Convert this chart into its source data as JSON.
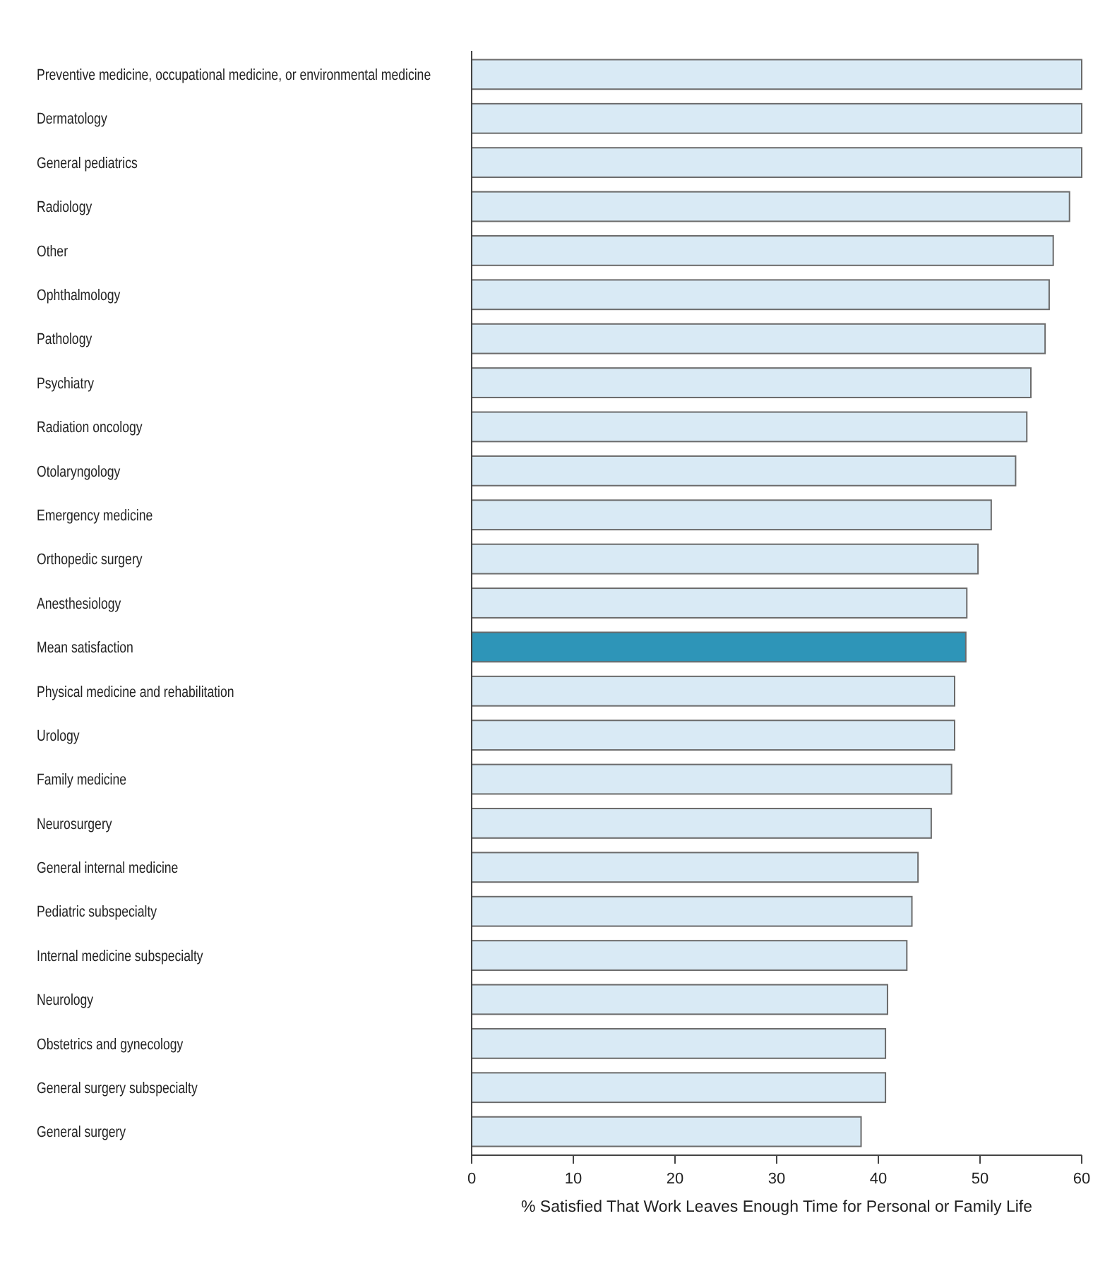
{
  "chart_data": {
    "type": "bar",
    "orientation": "horizontal",
    "xlabel": "% Satisfied That Work Leaves Enough Time for Personal or Family Life",
    "categories": [
      "Preventive medicine, occupational medicine, or environmental medicine",
      "Dermatology",
      "General pediatrics",
      "Radiology",
      "Other",
      "Ophthalmology",
      "Pathology",
      "Psychiatry",
      "Radiation oncology",
      "Otolaryngology",
      "Emergency medicine",
      "Orthopedic surgery",
      "Anesthesiology",
      "Mean satisfaction",
      "Physical medicine and rehabilitation",
      "Urology",
      "Family medicine",
      "Neurosurgery",
      "General internal medicine",
      "Pediatric subspecialty",
      "Internal medicine subspecialty",
      "Neurology",
      "Obstetrics and gynecology",
      "General surgery subspecialty",
      "General surgery"
    ],
    "values": [
      60,
      60,
      60,
      58.8,
      57.2,
      56.8,
      56.4,
      55.0,
      54.6,
      53.5,
      51.1,
      49.8,
      48.7,
      48.6,
      47.5,
      47.5,
      47.2,
      45.2,
      43.9,
      43.3,
      42.8,
      40.9,
      40.7,
      40.7,
      38.3
    ],
    "colors": [
      "#d9eaf5",
      "#d9eaf5",
      "#d9eaf5",
      "#d9eaf5",
      "#d9eaf5",
      "#d9eaf5",
      "#d9eaf5",
      "#d9eaf5",
      "#d9eaf5",
      "#d9eaf5",
      "#d9eaf5",
      "#d9eaf5",
      "#d9eaf5",
      "#2e95b8",
      "#d9eaf5",
      "#d9eaf5",
      "#d9eaf5",
      "#d9eaf5",
      "#d9eaf5",
      "#d9eaf5",
      "#d9eaf5",
      "#d9eaf5",
      "#d9eaf5",
      "#d9eaf5",
      "#d9eaf5"
    ],
    "xlim": [
      0,
      60
    ],
    "xticks": [
      0,
      10,
      20,
      30,
      40,
      50,
      60
    ],
    "grid": false
  }
}
